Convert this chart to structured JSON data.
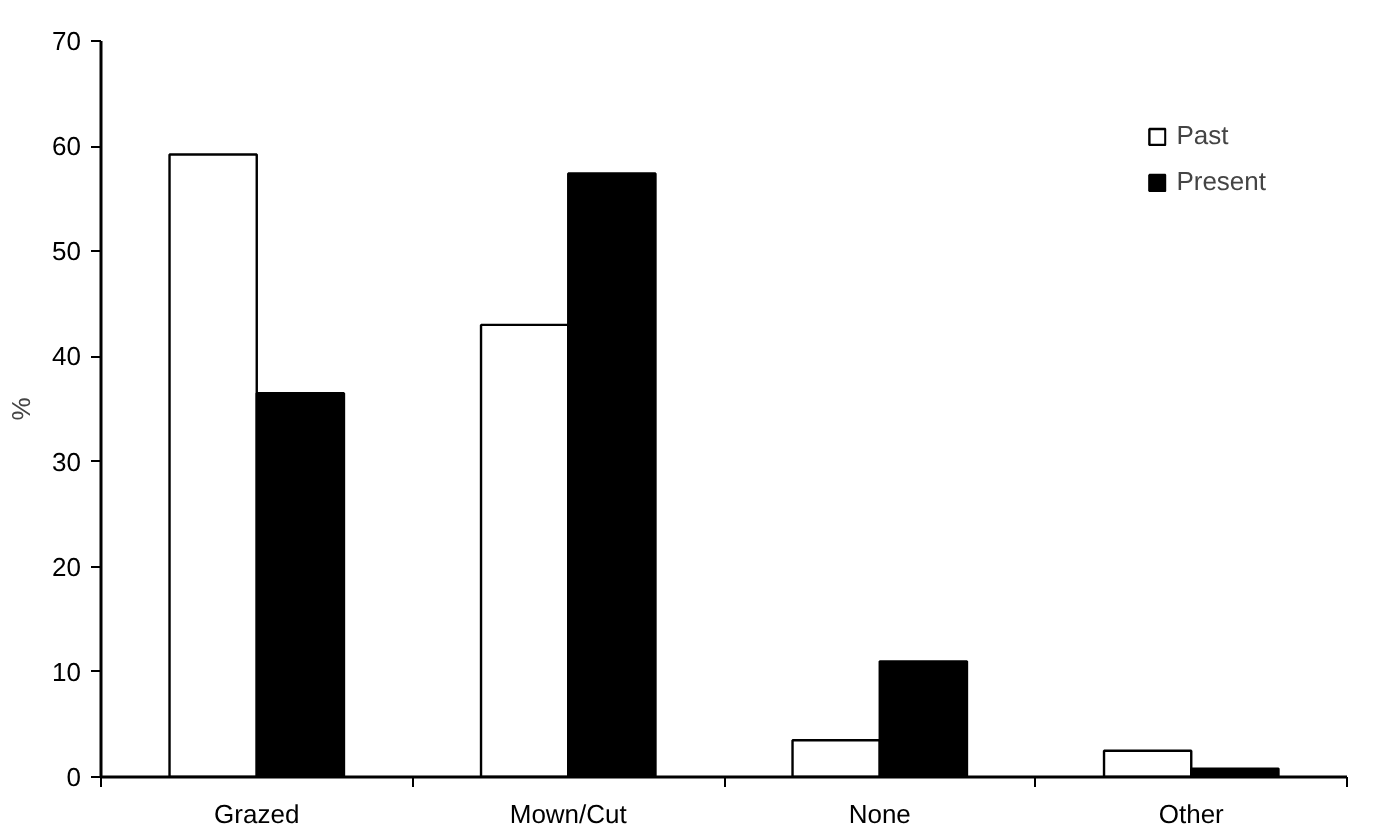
{
  "chart_data": {
    "type": "bar",
    "ylabel": "%",
    "categories": [
      "Grazed",
      "Mown/Cut",
      "None",
      "Other"
    ],
    "series": [
      {
        "name": "Past",
        "color": "#ffffff",
        "values": [
          59.2,
          43.0,
          3.5,
          2.5
        ]
      },
      {
        "name": "Present",
        "color": "#000000",
        "values": [
          36.5,
          57.4,
          11.0,
          0.8
        ]
      }
    ],
    "ylim": [
      0,
      70
    ],
    "yticks": [
      0,
      10,
      20,
      30,
      40,
      50,
      60,
      70
    ],
    "grid": false,
    "legend": "top right"
  }
}
